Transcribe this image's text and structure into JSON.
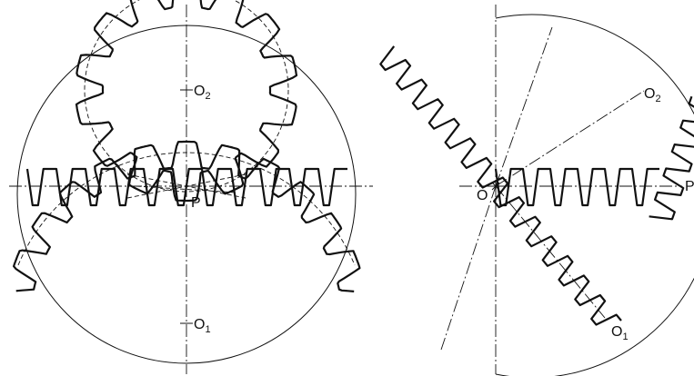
{
  "diagram": {
    "left_panel": {
      "labels": {
        "o2": {
          "main": "O",
          "sub": "2"
        },
        "o1": {
          "main": "O",
          "sub": "1"
        },
        "p": {
          "main": "P"
        }
      }
    },
    "right_panel": {
      "labels": {
        "o": {
          "main": "O"
        },
        "o2": {
          "main": "O",
          "sub": "2"
        },
        "o1": {
          "main": "O",
          "sub": "1"
        },
        "p": {
          "main": "P"
        }
      }
    }
  }
}
